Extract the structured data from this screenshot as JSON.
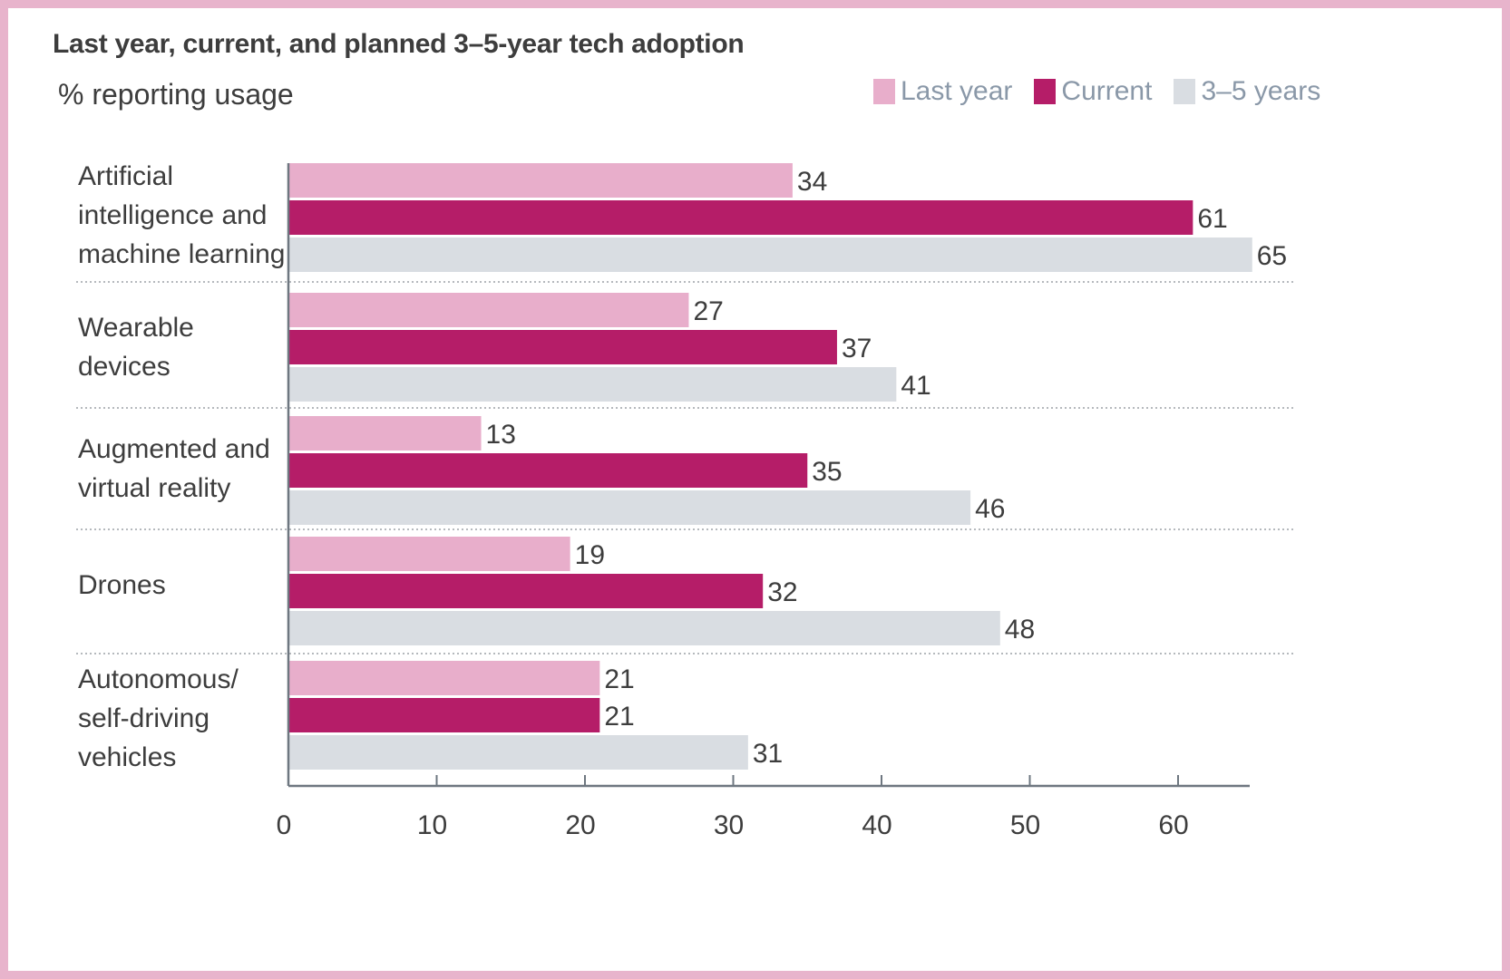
{
  "chart_data": {
    "type": "bar",
    "orientation": "horizontal",
    "title": "Last year, current, and planned 3–5-year tech adoption",
    "subtitle": "% reporting usage",
    "categories": [
      "Artificial intelligence and machine learning",
      "Wearable devices",
      "Augmented and virtual reality",
      "Drones",
      "Autonomous/ self-driving vehicles"
    ],
    "category_lines": [
      [
        "Artificial",
        "intelligence and",
        "machine learning"
      ],
      [
        "Wearable",
        "devices"
      ],
      [
        "Augmented and",
        "virtual reality"
      ],
      [
        "Drones"
      ],
      [
        "Autonomous/",
        "self-driving",
        "vehicles"
      ]
    ],
    "series": [
      {
        "name": "Last year",
        "color": "#e8aecb",
        "values": [
          34,
          27,
          13,
          19,
          21
        ]
      },
      {
        "name": "Current",
        "color": "#b51d68",
        "values": [
          61,
          37,
          35,
          32,
          21
        ]
      },
      {
        "name": "3–5 years",
        "color": "#d9dde2",
        "values": [
          65,
          41,
          46,
          48,
          31
        ]
      }
    ],
    "xlim": [
      0,
      65
    ],
    "ticks": [
      0,
      10,
      20,
      30,
      40,
      50,
      60
    ],
    "legend_position": "top-right",
    "grid": false
  }
}
